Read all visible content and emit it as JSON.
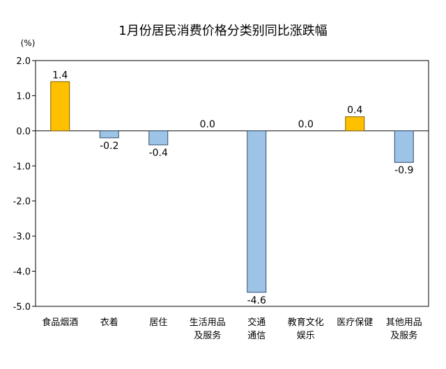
{
  "chart_data": {
    "type": "bar",
    "title": "1月份居民消费价格分类别同比涨跌幅",
    "unit": "(%)",
    "categories": [
      [
        "食品烟酒"
      ],
      [
        "衣着"
      ],
      [
        "居住"
      ],
      [
        "生活用品",
        "及服务"
      ],
      [
        "交通",
        "通信"
      ],
      [
        "教育文化",
        "娱乐"
      ],
      [
        "医疗保健"
      ],
      [
        "其他用品",
        "及服务"
      ]
    ],
    "values": [
      1.4,
      -0.2,
      -0.4,
      0.0,
      -4.6,
      0.0,
      0.4,
      -0.9
    ],
    "value_labels": [
      "1.4",
      "-0.2",
      "-0.4",
      "0.0",
      "-4.6",
      "0.0",
      "0.4",
      "-0.9"
    ],
    "ylim": [
      -5.0,
      2.0
    ],
    "yticks": [
      "2.0",
      "1.0",
      "0.0",
      "-1.0",
      "-2.0",
      "-3.0",
      "-4.0",
      "-5.0"
    ],
    "colors": {
      "positive": "#FFC000",
      "negative": "#9DC3E6",
      "positive_stroke": "#7F6000",
      "negative_stroke": "#2E4A6B"
    },
    "grid": false,
    "legend": "none"
  }
}
